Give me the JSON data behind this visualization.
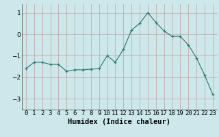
{
  "x": [
    0,
    1,
    2,
    3,
    4,
    5,
    6,
    7,
    8,
    9,
    10,
    11,
    12,
    13,
    14,
    15,
    16,
    17,
    18,
    19,
    20,
    21,
    22,
    23
  ],
  "y": [
    -1.6,
    -1.3,
    -1.3,
    -1.4,
    -1.4,
    -1.72,
    -1.65,
    -1.65,
    -1.62,
    -1.6,
    -1.0,
    -1.3,
    -0.7,
    0.2,
    0.5,
    1.0,
    0.55,
    0.15,
    -0.1,
    -0.1,
    -0.5,
    -1.1,
    -1.9,
    -2.8
  ],
  "line_color": "#2d7a6e",
  "bg_color": "#cce8ea",
  "grid_color": "#c0a0a0",
  "xlabel": "Humidex (Indice chaleur)",
  "ylim": [
    -3.5,
    1.4
  ],
  "xlim": [
    -0.5,
    23.5
  ],
  "yticks": [
    -3,
    -2,
    -1,
    0,
    1
  ],
  "label_fontsize": 7.5,
  "tick_fontsize": 6.5
}
